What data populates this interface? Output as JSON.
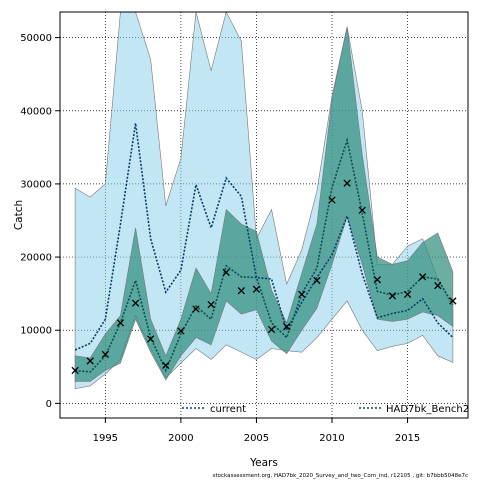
{
  "chart_data": {
    "type": "line",
    "xlabel": "Years",
    "ylabel": "Catch",
    "xlim": [
      1992,
      2019
    ],
    "ylim": [
      -2000,
      53500
    ],
    "xticks": [
      1995,
      2000,
      2005,
      2010,
      2015
    ],
    "yticks": [
      0,
      10000,
      20000,
      30000,
      40000,
      50000
    ],
    "grid": true,
    "legend_placement": "bottom",
    "footnote": "stockassessment.org, HAD7bk_2020_Survey_and_two_Com_ind, r12105 , git: b7bbb5048e7c",
    "series": [
      {
        "name": "current",
        "color": "#0b3d6b",
        "band_color": "#87ceeb",
        "x": [
          1993,
          1994,
          1995,
          1996,
          1997,
          1998,
          1999,
          2000,
          2001,
          2002,
          2003,
          2004,
          2005,
          2006,
          2007,
          2008,
          2009,
          2010,
          2011,
          2012,
          2013,
          2014,
          2015,
          2016,
          2017,
          2018
        ],
        "y": [
          7300,
          8200,
          11500,
          24500,
          38300,
          22500,
          15200,
          18200,
          29900,
          24000,
          30800,
          28300,
          17200,
          17000,
          10000,
          13800,
          17200,
          20300,
          25600,
          17700,
          11700,
          12300,
          12700,
          14300,
          11000,
          9000
        ],
        "lower": [
          2000,
          2400,
          4000,
          6000,
          12000,
          7500,
          3500,
          5500,
          7500,
          6000,
          8000,
          7000,
          6000,
          7500,
          7200,
          7000,
          9000,
          11500,
          14000,
          10000,
          7200,
          7800,
          8200,
          9300,
          6500,
          5600
        ],
        "upper": [
          29400,
          28200,
          30000,
          53500,
          53500,
          47000,
          27000,
          33500,
          53500,
          45500,
          53500,
          49500,
          22500,
          26500,
          16300,
          21000,
          29000,
          42000,
          51500,
          40000,
          19000,
          19000,
          21500,
          22500,
          17000,
          13000
        ]
      },
      {
        "name": "HAD7bk_Bench2",
        "color": "#0f4d4d",
        "band_color": "#2e8b7a",
        "x": [
          1993,
          1994,
          1995,
          1996,
          1997,
          1998,
          1999,
          2000,
          2001,
          2002,
          2003,
          2004,
          2005,
          2006,
          2007,
          2008,
          2009,
          2010,
          2011,
          2012,
          2013,
          2014,
          2015,
          2016,
          2017,
          2018
        ],
        "y": [
          4500,
          4300,
          6500,
          11000,
          16800,
          9000,
          4500,
          9500,
          13300,
          11500,
          18800,
          17300,
          17200,
          11000,
          9000,
          15000,
          18500,
          29500,
          36000,
          26000,
          15300,
          14800,
          15300,
          17300,
          17000,
          13500
        ],
        "lower": [
          3000,
          3000,
          4500,
          5500,
          11500,
          7000,
          3200,
          6500,
          9000,
          8000,
          14000,
          12200,
          12800,
          8500,
          6800,
          10000,
          13000,
          19000,
          25500,
          19000,
          11500,
          11200,
          11500,
          12500,
          12000,
          10500
        ],
        "upper": [
          6500,
          6200,
          9500,
          12000,
          24000,
          11500,
          6500,
          11500,
          18500,
          15000,
          26500,
          24500,
          23500,
          15500,
          11000,
          17800,
          24500,
          41500,
          51500,
          34000,
          20000,
          19000,
          19500,
          22000,
          23300,
          18000
        ]
      }
    ],
    "points": {
      "marker": "x",
      "x": [
        1993,
        1994,
        1995,
        1996,
        1997,
        1998,
        1999,
        2000,
        2001,
        2002,
        2003,
        2004,
        2005,
        2006,
        2007,
        2008,
        2009,
        2010,
        2011,
        2012,
        2013,
        2014,
        2015,
        2016,
        2017,
        2018
      ],
      "y": [
        4500,
        5800,
        6700,
        11000,
        13700,
        8800,
        5200,
        9900,
        12900,
        13500,
        17900,
        15400,
        15600,
        10100,
        10500,
        14900,
        16800,
        27800,
        30100,
        26400,
        16900,
        14700,
        14900,
        17300,
        16100,
        14000
      ]
    }
  }
}
